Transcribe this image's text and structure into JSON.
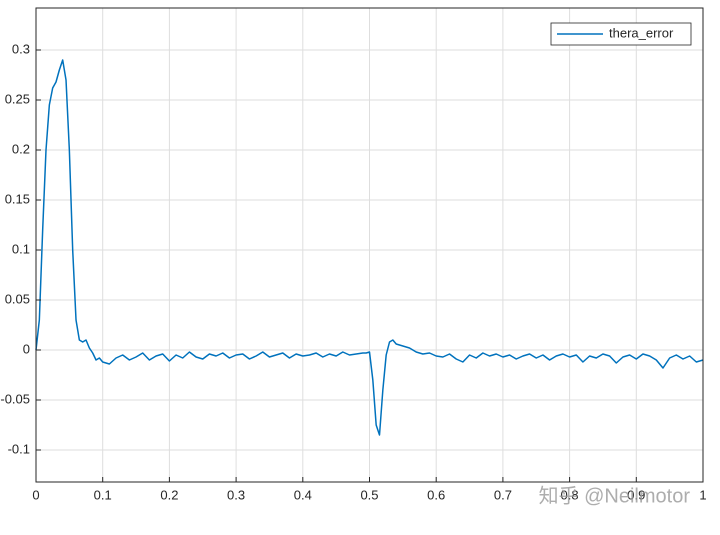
{
  "chart_data": {
    "type": "line",
    "x": [
      0,
      0.005,
      0.01,
      0.015,
      0.02,
      0.025,
      0.03,
      0.035,
      0.04,
      0.045,
      0.05,
      0.055,
      0.06,
      0.065,
      0.07,
      0.075,
      0.08,
      0.085,
      0.09,
      0.095,
      0.1,
      0.11,
      0.12,
      0.13,
      0.14,
      0.15,
      0.16,
      0.17,
      0.18,
      0.19,
      0.2,
      0.21,
      0.22,
      0.23,
      0.24,
      0.25,
      0.26,
      0.27,
      0.28,
      0.29,
      0.3,
      0.31,
      0.32,
      0.33,
      0.34,
      0.35,
      0.36,
      0.37,
      0.38,
      0.39,
      0.4,
      0.41,
      0.42,
      0.43,
      0.44,
      0.45,
      0.46,
      0.47,
      0.48,
      0.49,
      0.495,
      0.5,
      0.505,
      0.51,
      0.515,
      0.52,
      0.525,
      0.53,
      0.535,
      0.54,
      0.55,
      0.56,
      0.57,
      0.58,
      0.59,
      0.6,
      0.61,
      0.62,
      0.63,
      0.64,
      0.65,
      0.66,
      0.67,
      0.68,
      0.69,
      0.7,
      0.71,
      0.72,
      0.73,
      0.74,
      0.75,
      0.76,
      0.77,
      0.78,
      0.79,
      0.8,
      0.81,
      0.82,
      0.83,
      0.84,
      0.85,
      0.86,
      0.87,
      0.88,
      0.89,
      0.9,
      0.91,
      0.92,
      0.93,
      0.94,
      0.95,
      0.96,
      0.97,
      0.98,
      0.99,
      1
    ],
    "series": [
      {
        "name": "thera_error",
        "color": "#0072bd",
        "values": [
          0,
          0.03,
          0.12,
          0.2,
          0.245,
          0.262,
          0.268,
          0.28,
          0.29,
          0.27,
          0.2,
          0.1,
          0.03,
          0.01,
          0.008,
          0.01,
          0.002,
          -0.003,
          -0.01,
          -0.008,
          -0.012,
          -0.014,
          -0.008,
          -0.005,
          -0.01,
          -0.007,
          -0.003,
          -0.01,
          -0.006,
          -0.004,
          -0.011,
          -0.005,
          -0.008,
          -0.002,
          -0.007,
          -0.009,
          -0.004,
          -0.006,
          -0.003,
          -0.008,
          -0.005,
          -0.004,
          -0.009,
          -0.006,
          -0.002,
          -0.007,
          -0.005,
          -0.003,
          -0.008,
          -0.004,
          -0.006,
          -0.005,
          -0.003,
          -0.007,
          -0.004,
          -0.006,
          -0.002,
          -0.005,
          -0.004,
          -0.003,
          -0.003,
          -0.002,
          -0.03,
          -0.075,
          -0.085,
          -0.04,
          -0.005,
          0.008,
          0.01,
          0.006,
          0.004,
          0.002,
          -0.002,
          -0.004,
          -0.003,
          -0.006,
          -0.007,
          -0.004,
          -0.009,
          -0.012,
          -0.005,
          -0.008,
          -0.003,
          -0.006,
          -0.004,
          -0.007,
          -0.005,
          -0.009,
          -0.006,
          -0.004,
          -0.008,
          -0.005,
          -0.01,
          -0.006,
          -0.004,
          -0.007,
          -0.005,
          -0.012,
          -0.006,
          -0.008,
          -0.004,
          -0.006,
          -0.013,
          -0.007,
          -0.005,
          -0.009,
          -0.004,
          -0.006,
          -0.01,
          -0.018,
          -0.008,
          -0.005,
          -0.009,
          -0.006,
          -0.012,
          -0.01
        ]
      }
    ],
    "xlim": [
      0,
      1
    ],
    "ylim": [
      -0.132,
      0.342
    ],
    "xticks": [
      0,
      0.1,
      0.2,
      0.3,
      0.4,
      0.5,
      0.6,
      0.7,
      0.8,
      0.9,
      1
    ],
    "yticks": [
      -0.1,
      -0.05,
      0,
      0.05,
      0.1,
      0.15,
      0.2,
      0.25,
      0.3
    ],
    "grid": true,
    "legend": "top-right",
    "watermark": "知乎 @Neilmotor"
  }
}
